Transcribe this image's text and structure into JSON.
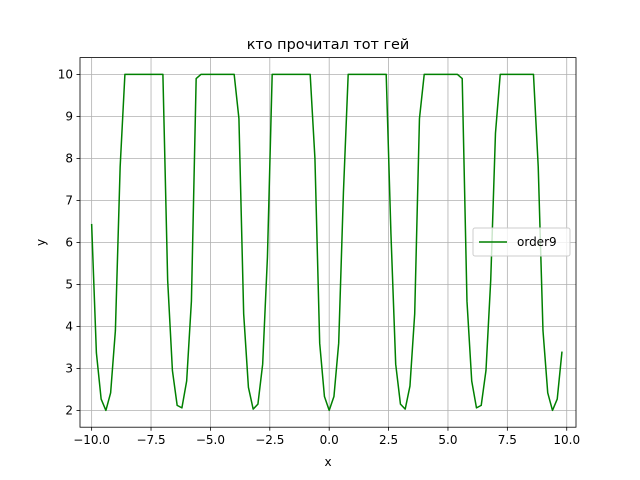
{
  "chart_data": {
    "type": "line",
    "title": "кто прочитал тот гей",
    "xlabel": "x",
    "ylabel": "y",
    "xlim": [
      -10.49,
      10.39
    ],
    "ylim": [
      1.6,
      10.4
    ],
    "xticks": [
      -10.0,
      -7.5,
      -5.0,
      -2.5,
      0.0,
      2.5,
      5.0,
      7.5,
      10.0
    ],
    "xtick_labels": [
      "−10.0",
      "−7.5",
      "−5.0",
      "−2.5",
      "0.0",
      "2.5",
      "5.0",
      "7.5",
      "10.0"
    ],
    "yticks": [
      2,
      3,
      4,
      5,
      6,
      7,
      8,
      9,
      10
    ],
    "ytick_labels": [
      "2",
      "3",
      "4",
      "5",
      "6",
      "7",
      "8",
      "9",
      "10"
    ],
    "grid": true,
    "legend_position": "center-right",
    "series": [
      {
        "name": "order9",
        "color": "#008000",
        "x": [
          -10.0,
          -9.8,
          -9.6,
          -9.4,
          -9.2,
          -9.0,
          -8.8,
          -8.6,
          -8.4,
          -8.2,
          -8.0,
          -7.8,
          -7.6,
          -7.4,
          -7.2,
          -7.0,
          -6.8,
          -6.6,
          -6.4,
          -6.2,
          -6.0,
          -5.8,
          -5.6,
          -5.4,
          -5.2,
          -5.0,
          -4.8,
          -4.6,
          -4.4,
          -4.2,
          -4.0,
          -3.8,
          -3.6,
          -3.4,
          -3.2,
          -3.0,
          -2.8,
          -2.6,
          -2.4,
          -2.2,
          -2.0,
          -1.8,
          -1.6,
          -1.4,
          -1.2,
          -1.0,
          -0.8,
          -0.6,
          -0.4,
          -0.2,
          0.0,
          0.2,
          0.4,
          0.6,
          0.8,
          1.0,
          1.2,
          1.4,
          1.6,
          1.8,
          2.0,
          2.2,
          2.4,
          2.6,
          2.8,
          3.0,
          3.2,
          3.4,
          3.6,
          3.8,
          4.0,
          4.2,
          4.4,
          4.6,
          4.8,
          5.0,
          5.2,
          5.4,
          5.6,
          5.8,
          6.0,
          6.2,
          6.4,
          6.6,
          6.8,
          7.0,
          7.2,
          7.4,
          7.6,
          7.8,
          8.0,
          8.2,
          8.4,
          8.6,
          8.8,
          9.0,
          9.2,
          9.4,
          9.6,
          9.8
        ],
        "y": [
          6.44,
          3.37,
          2.27,
          2.0,
          2.42,
          3.9,
          7.8,
          10.0,
          10.0,
          10.0,
          10.0,
          10.0,
          10.0,
          10.0,
          10.0,
          10.0,
          5.1,
          2.95,
          2.12,
          2.06,
          2.7,
          4.6,
          9.9,
          10.0,
          10.0,
          10.0,
          10.0,
          10.0,
          10.0,
          10.0,
          10.0,
          8.95,
          4.3,
          2.55,
          2.03,
          2.15,
          3.1,
          5.65,
          10.0,
          10.0,
          10.0,
          10.0,
          10.0,
          10.0,
          10.0,
          10.0,
          10.0,
          8.0,
          3.6,
          2.33,
          2.0,
          2.33,
          3.6,
          7.2,
          10.0,
          10.0,
          10.0,
          10.0,
          10.0,
          10.0,
          10.0,
          10.0,
          10.0,
          6.2,
          3.1,
          2.15,
          2.03,
          2.58,
          4.3,
          8.95,
          10.0,
          10.0,
          10.0,
          10.0,
          10.0,
          10.0,
          10.0,
          10.0,
          9.9,
          4.6,
          2.7,
          2.06,
          2.12,
          2.95,
          5.1,
          8.6,
          10.0,
          10.0,
          10.0,
          10.0,
          10.0,
          10.0,
          10.0,
          10.0,
          7.8,
          3.9,
          2.42,
          2.0,
          2.27,
          3.4
        ]
      }
    ]
  }
}
